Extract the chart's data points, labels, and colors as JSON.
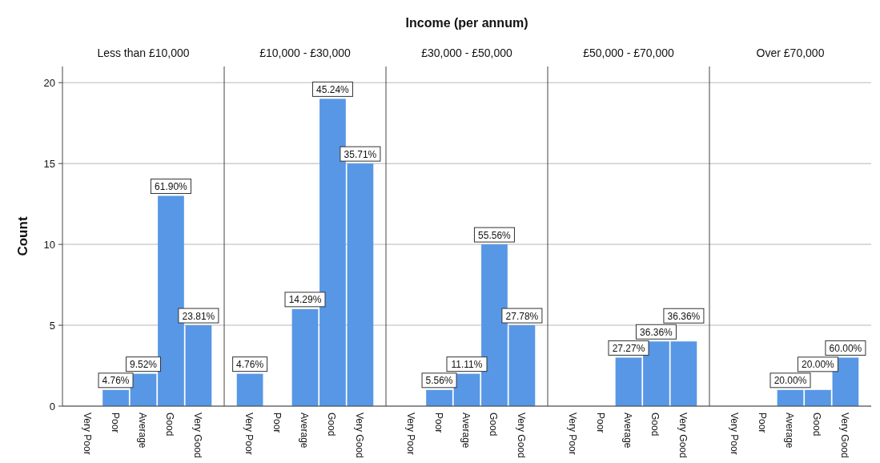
{
  "chart_data": [
    {
      "type": "bar",
      "subtitle": "Less than £10,000",
      "ylabel": "Count",
      "categories": [
        "Very Poor",
        "Poor",
        "Average",
        "Good",
        "Very Good"
      ],
      "values": [
        0,
        1,
        2,
        13,
        5
      ],
      "color": "#5797e5",
      "ylim": [
        0,
        21
      ],
      "yticks": [
        0,
        5,
        10,
        15,
        20
      ],
      "grid": "y",
      "annotations": [
        {
          "text": "4.76%",
          "x": "Poor",
          "y": 1
        },
        {
          "text": "9.52%",
          "x": "Average",
          "y": 2
        },
        {
          "text": "61.90%",
          "x": "Good",
          "y": 13
        },
        {
          "text": "23.81%",
          "x": "Very Good",
          "y": 5
        }
      ]
    },
    {
      "type": "bar",
      "subtitle": "£10,000 - £30,000",
      "categories": [
        "Very Poor",
        "Poor",
        "Average",
        "Good",
        "Very Good"
      ],
      "values": [
        2,
        0,
        6,
        19,
        15
      ],
      "color": "#5797e5",
      "ylim": [
        0,
        21
      ],
      "yticks": [
        0,
        5,
        10,
        15,
        20
      ],
      "grid": "y",
      "tick_labels": "x",
      "annotations": [
        {
          "text": "4.76%",
          "x": "Very Poor",
          "y": 2
        },
        {
          "text": "14.29%",
          "x": "Average",
          "y": 6
        },
        {
          "text": "45.24%",
          "x": "Good",
          "y": 19
        },
        {
          "text": "35.71%",
          "x": "Very Good",
          "y": 15
        }
      ]
    },
    {
      "type": "bar",
      "title": "Income (per annum)",
      "subtitle": "£30,000 - £50,000",
      "categories": [
        "Very Poor",
        "Poor",
        "Average",
        "Good",
        "Very Good"
      ],
      "values": [
        0,
        1,
        2,
        10,
        5
      ],
      "color": "#5797e5",
      "ylim": [
        0,
        21
      ],
      "yticks": [
        0,
        5,
        10,
        15,
        20
      ],
      "grid": "y",
      "tick_labels": "x",
      "annotations": [
        {
          "text": "5.56%",
          "x": "Poor",
          "y": 1
        },
        {
          "text": "11.11%",
          "x": "Average",
          "y": 2
        },
        {
          "text": "55.56%",
          "x": "Good",
          "y": 10
        },
        {
          "text": "27.78%",
          "x": "Very Good",
          "y": 5
        }
      ]
    },
    {
      "type": "bar",
      "subtitle": "£50,000 - £70,000",
      "categories": [
        "Very Poor",
        "Poor",
        "Average",
        "Good",
        "Very Good"
      ],
      "values": [
        0,
        0,
        3,
        4,
        4
      ],
      "color": "#5797e5",
      "ylim": [
        0,
        21
      ],
      "yticks": [
        0,
        5,
        10,
        15,
        20
      ],
      "grid": "y",
      "tick_labels": "x",
      "annotations": [
        {
          "text": "27.27%",
          "x": "Average",
          "y": 3
        },
        {
          "text": "36.36%",
          "x": "Good",
          "y": 4
        },
        {
          "text": "36.36%",
          "x": "Very Good",
          "y": 4
        }
      ]
    },
    {
      "type": "bar",
      "subtitle": "Over £70,000",
      "categories": [
        "Very Poor",
        "Poor",
        "Average",
        "Good",
        "Very Good"
      ],
      "values": [
        0,
        0,
        1,
        1,
        3
      ],
      "color": "#5797e5",
      "ylim": [
        0,
        21
      ],
      "yticks": [
        0,
        5,
        10,
        15,
        20
      ],
      "grid": "y",
      "tick_labels": "x",
      "annotations": [
        {
          "text": "20.00%",
          "x": "Average",
          "y": 1
        },
        {
          "text": "20.00%",
          "x": "Good",
          "y": 1
        },
        {
          "text": "60.00%",
          "x": "Very Good",
          "y": 3
        }
      ]
    }
  ]
}
